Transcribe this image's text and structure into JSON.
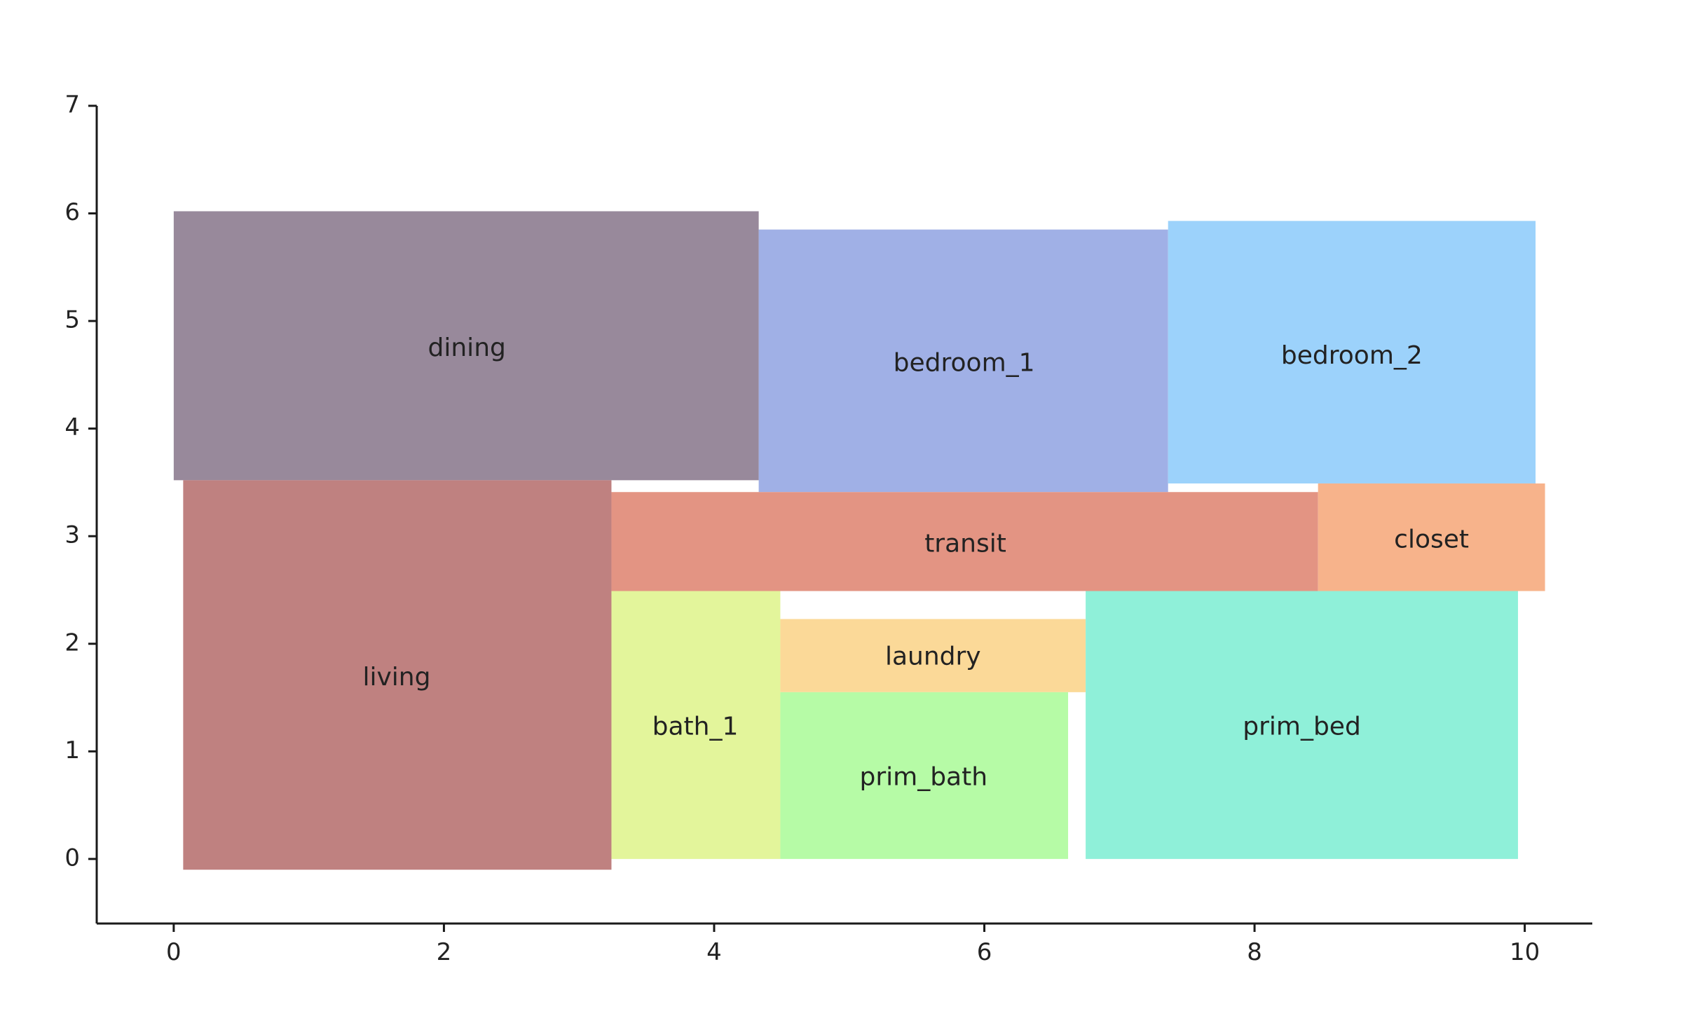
{
  "chart_data": {
    "type": "floorplan",
    "title": "",
    "xlabel": "",
    "ylabel": "",
    "xlim": [
      -0.57,
      10.5
    ],
    "ylim": [
      -0.6,
      7.0
    ],
    "x_ticks": [
      0,
      2,
      4,
      6,
      8,
      10
    ],
    "y_ticks": [
      0,
      1,
      2,
      3,
      4,
      5,
      6,
      7
    ],
    "grid": false,
    "rooms": [
      {
        "name": "dining",
        "x0": 0.0,
        "x1": 4.33,
        "y0": 3.52,
        "y1": 6.02,
        "color": "#98899b",
        "label_x": 2.17,
        "label_y": 4.74
      },
      {
        "name": "bedroom_1",
        "x0": 4.33,
        "x1": 7.36,
        "y0": 3.41,
        "y1": 5.85,
        "color": "#a0b0e6",
        "label_x": 5.85,
        "label_y": 4.6
      },
      {
        "name": "bedroom_2",
        "x0": 7.36,
        "x1": 10.08,
        "y0": 3.49,
        "y1": 5.93,
        "color": "#9cd2fb",
        "label_x": 8.72,
        "label_y": 4.67
      },
      {
        "name": "living",
        "x0": 0.07,
        "x1": 3.24,
        "y0": -0.1,
        "y1": 3.52,
        "color": "#bf8180",
        "label_x": 1.65,
        "label_y": 1.68
      },
      {
        "name": "transit",
        "x0": 3.24,
        "x1": 8.47,
        "y0": 2.49,
        "y1": 3.41,
        "color": "#e39483",
        "label_x": 5.86,
        "label_y": 2.92
      },
      {
        "name": "closet",
        "x0": 8.47,
        "x1": 10.15,
        "y0": 2.49,
        "y1": 3.49,
        "color": "#f7b38b",
        "label_x": 9.31,
        "label_y": 2.96
      },
      {
        "name": "bath_1",
        "x0": 3.24,
        "x1": 4.49,
        "y0": 0.0,
        "y1": 2.49,
        "color": "#e3f59b",
        "label_x": 3.86,
        "label_y": 1.22
      },
      {
        "name": "laundry",
        "x0": 4.49,
        "x1": 6.75,
        "y0": 1.55,
        "y1": 2.23,
        "color": "#fbd998",
        "label_x": 5.62,
        "label_y": 1.87
      },
      {
        "name": "prim_bath",
        "x0": 4.49,
        "x1": 6.62,
        "y0": 0.0,
        "y1": 1.55,
        "color": "#b6fba6",
        "label_x": 5.55,
        "label_y": 0.75
      },
      {
        "name": "prim_bed",
        "x0": 6.75,
        "x1": 9.95,
        "y0": 0.0,
        "y1": 2.49,
        "color": "#8ff0d9",
        "label_x": 8.35,
        "label_y": 1.22
      }
    ]
  }
}
